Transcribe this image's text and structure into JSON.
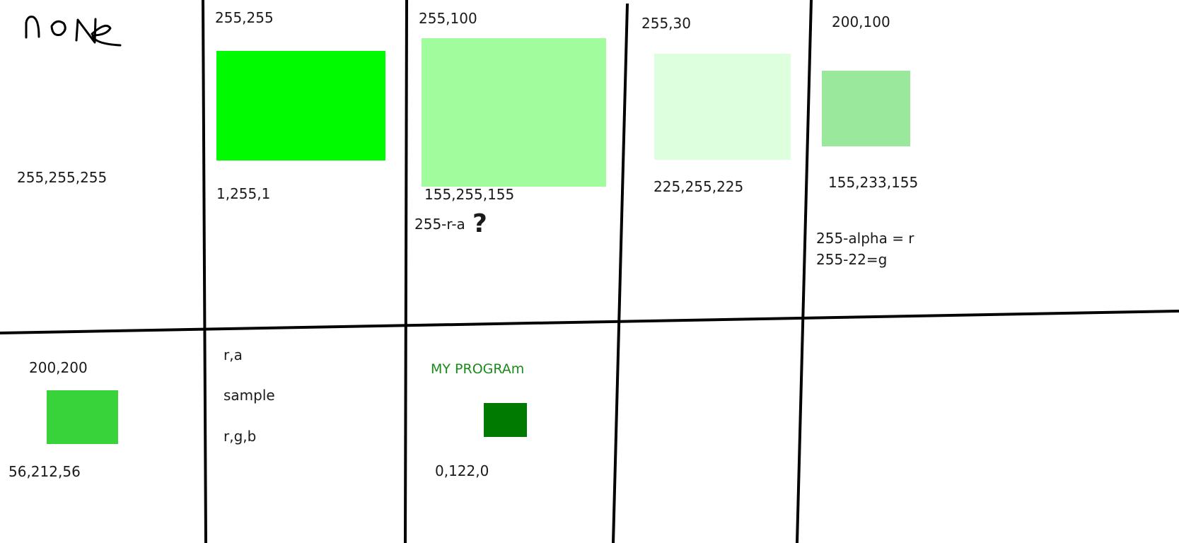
{
  "none_word": "none",
  "cells": {
    "c1": {
      "bottom": "255,255,255"
    },
    "c2": {
      "top": "255,255",
      "bottom": "1,255,1",
      "swatch_color": "#00fa00"
    },
    "c3": {
      "top": "255,100",
      "bottom": "155,255,155",
      "note": "255-r-a",
      "note_mark": "?",
      "swatch_color": "#a0fc9c"
    },
    "c4": {
      "top": "255,30",
      "bottom": "225,255,225",
      "swatch_color": "#ddffde"
    },
    "c5": {
      "top": "200,100",
      "bottom": "155,233,155",
      "line1": "255-alpha = r",
      "line2": "255-22=g",
      "swatch_color": "#9ae89c"
    },
    "c6": {
      "top": "200,200",
      "bottom": "56,212,56",
      "swatch_color": "#38d33a"
    },
    "c7": {
      "line1": "r,a",
      "line2": "sample",
      "line3": "r,g,b"
    },
    "c8": {
      "title": "MY PROGRAm",
      "bottom": "0,122,0",
      "swatch_color": "#007a00",
      "title_color": "#1a8a1a"
    }
  }
}
